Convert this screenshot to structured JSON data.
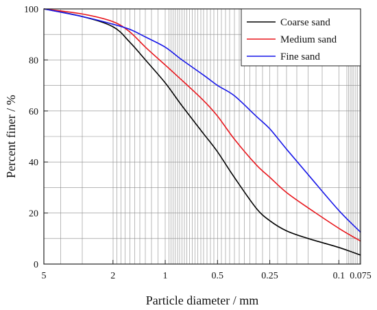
{
  "chart_data": {
    "type": "line",
    "title": "",
    "xlabel": "Particle diameter / mm",
    "ylabel": "Percent finer / %",
    "x_scale": "log",
    "x_reversed": true,
    "xlim": [
      5,
      0.075
    ],
    "ylim": [
      0,
      100
    ],
    "grid": true,
    "legend_position": "top-right",
    "x_ticks": [
      {
        "value": 5,
        "label": "5"
      },
      {
        "value": 2,
        "label": "2"
      },
      {
        "value": 1,
        "label": "1"
      },
      {
        "value": 0.5,
        "label": "0.5"
      },
      {
        "value": 0.25,
        "label": "0.25"
      },
      {
        "value": 0.1,
        "label": "0.1"
      },
      {
        "value": 0.075,
        "label": "0.075"
      }
    ],
    "y_ticks": [
      0,
      20,
      40,
      60,
      80,
      100
    ],
    "series": [
      {
        "name": "Coarse sand",
        "color": "#000000",
        "x": [
          5,
          3,
          2,
          1.6,
          1.3,
          1,
          0.8,
          0.6,
          0.5,
          0.4,
          0.3,
          0.25,
          0.2,
          0.15,
          0.1,
          0.075
        ],
        "y": [
          100,
          97,
          93,
          87,
          80,
          71,
          62,
          51,
          44,
          34,
          22,
          17,
          13,
          10,
          6.5,
          3.5
        ]
      },
      {
        "name": "Medium sand",
        "color": "#e8151b",
        "x": [
          5,
          3,
          2,
          1.6,
          1.3,
          1,
          0.8,
          0.6,
          0.5,
          0.4,
          0.3,
          0.25,
          0.2,
          0.15,
          0.1,
          0.075
        ],
        "y": [
          100,
          98,
          95,
          91,
          85,
          78,
          72,
          64,
          58,
          49,
          39,
          34,
          28,
          22,
          14,
          9
        ]
      },
      {
        "name": "Fine sand",
        "color": "#1515e8",
        "x": [
          5,
          3,
          2,
          1.6,
          1.3,
          1,
          0.8,
          0.6,
          0.5,
          0.4,
          0.3,
          0.25,
          0.2,
          0.15,
          0.1,
          0.075
        ],
        "y": [
          100,
          97,
          94,
          92,
          89,
          85,
          80,
          74,
          70,
          66,
          58,
          53,
          45,
          35,
          21,
          12.5
        ]
      }
    ]
  }
}
